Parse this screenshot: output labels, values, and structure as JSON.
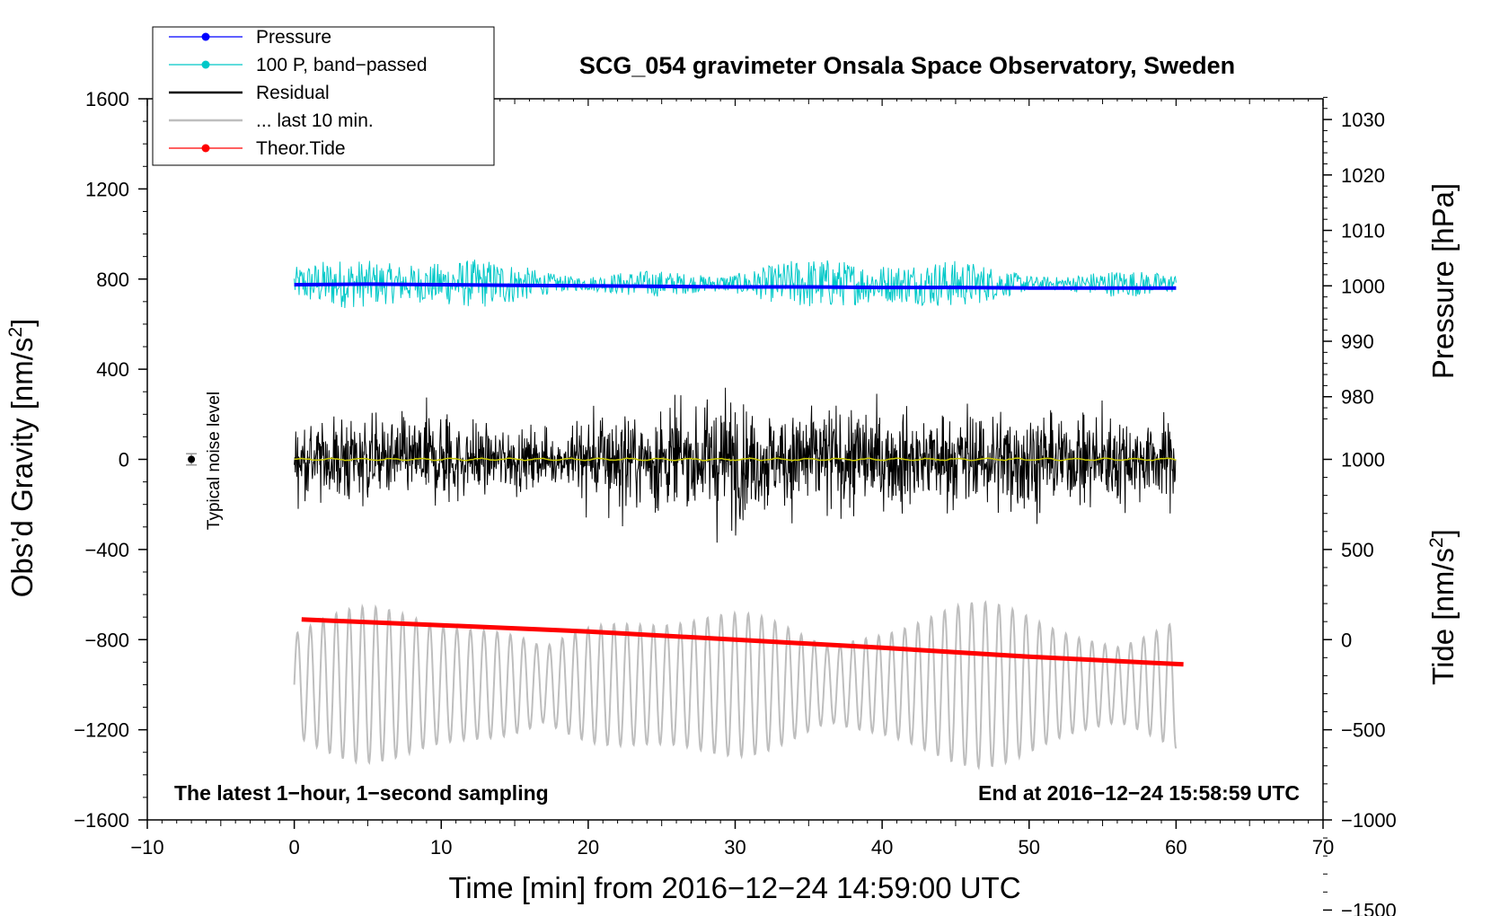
{
  "chart_data": {
    "type": "line",
    "title": "SCG_054 gravimeter Onsala Space Observatory, Sweden",
    "xlabel": "Time [min] from 2016−12−24 14:59:00 UTC",
    "xlim": [
      -10,
      70
    ],
    "xticks": [
      -10,
      0,
      10,
      20,
      30,
      40,
      50,
      60,
      70
    ],
    "xtick_labels": [
      "−10",
      "0",
      "10",
      "20",
      "30",
      "40",
      "50",
      "60",
      "70"
    ],
    "left_axis": {
      "label": "Obs’d Gravity [nm/s",
      "label_sup": "2",
      "label_end": "]",
      "ylim": [
        -1600,
        1600
      ],
      "ticks": [
        -1600,
        -1200,
        -800,
        -400,
        0,
        400,
        800,
        1200,
        1600
      ],
      "tick_labels": [
        "−1600",
        "−1200",
        "−800",
        "−400",
        "0",
        "400",
        "800",
        "1200",
        "1600"
      ]
    },
    "pressure_axis": {
      "label": "Pressure [hPa]",
      "ticks": [
        980,
        990,
        1000,
        1010,
        1020,
        1030
      ],
      "tick_labels": [
        "980",
        "990",
        "1000",
        "1010",
        "1020",
        "1030"
      ],
      "gravity_at_1000": 770,
      "gravity_per_hpa": 24.6
    },
    "tide_axis": {
      "label": "Tide [nm/s",
      "label_sup": "2",
      "label_end": "]",
      "ticks": [
        -1500,
        -1000,
        -500,
        0,
        500,
        1000
      ],
      "tick_labels": [
        "−1500",
        "−1000",
        "−500",
        "0",
        "500",
        "1000"
      ],
      "gravity_at_0": -800,
      "gravity_per_unit": 0.8
    },
    "legend": {
      "position": "top-left",
      "entries": [
        {
          "label": "Pressure",
          "color": "#0000ff",
          "marker": true
        },
        {
          "label": "100 P, band−passed",
          "color": "#00c8c8",
          "marker": true
        },
        {
          "label": "Residual",
          "color": "#000000",
          "marker": false
        },
        {
          "label": "... last 10 min.",
          "color": "#bebebe",
          "marker": false
        },
        {
          "label": "Theor.Tide",
          "color": "#ff0000",
          "marker": true
        }
      ]
    },
    "noise_label": "Typical noise level",
    "noise_point": {
      "x": -7,
      "y": 0,
      "err": 25
    },
    "footer_left": "The latest 1−hour, 1−second sampling",
    "footer_right": "End at 2016−12−24 15:58:59 UTC",
    "series": [
      {
        "name": "Pressure",
        "color": "#0000ff",
        "unit": "hPa",
        "x": [
          0,
          5,
          10,
          15,
          20,
          25,
          30,
          35,
          40,
          45,
          50,
          55,
          60
        ],
        "values": [
          1000.2,
          1000.3,
          1000.2,
          1000.1,
          1000.0,
          999.9,
          999.8,
          999.8,
          999.7,
          999.7,
          999.6,
          999.6,
          999.6
        ]
      },
      {
        "name": "100 P, band−passed",
        "color": "#00c8c8",
        "x_range": [
          0,
          60
        ],
        "baseline": 780,
        "amplitude_range": [
          -270,
          240
        ]
      },
      {
        "name": "Residual",
        "color": "#000000",
        "x_range": [
          0,
          60
        ],
        "envelope_x": [
          0,
          2,
          5,
          8,
          10,
          12,
          15,
          18,
          20,
          22,
          25,
          27,
          29,
          30,
          31,
          33,
          35,
          38,
          40,
          43,
          45,
          48,
          50,
          53,
          55,
          57,
          60
        ],
        "envelope": [
          280,
          350,
          400,
          350,
          420,
          330,
          280,
          200,
          460,
          420,
          450,
          400,
          520,
          580,
          460,
          400,
          480,
          450,
          430,
          380,
          430,
          420,
          450,
          350,
          420,
          350,
          320
        ]
      },
      {
        "name": "... last 10 min.",
        "color": "#bebebe",
        "x_range": [
          0,
          60
        ],
        "baseline": -1000,
        "amplitude_range": [
          -1400,
          -600
        ]
      },
      {
        "name": "Theor.Tide",
        "color": "#ff0000",
        "unit": "nm/s²",
        "x": [
          0.5,
          10,
          20,
          30,
          40,
          50,
          60.5
        ],
        "values": [
          112,
          80,
          45,
          0,
          -45,
          -95,
          -137
        ]
      },
      {
        "name": "Residual mean",
        "color": "#c8c800",
        "x": [
          0,
          60
        ],
        "values": [
          0,
          0
        ]
      }
    ]
  }
}
